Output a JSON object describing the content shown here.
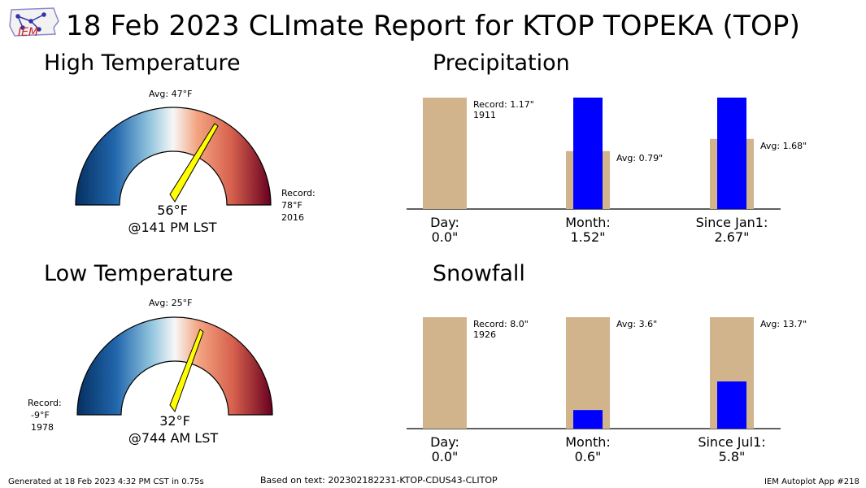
{
  "title": "18 Feb 2023 CLImate Report for KTOP TOPEKA (TOP)",
  "logo_text": "IEM",
  "colors": {
    "bar_record": "#d2b48c",
    "bar_obs": "#0000ff",
    "needle": "#ffff00"
  },
  "high_temp": {
    "heading": "High Temperature",
    "avg_label": "Avg: 47°F",
    "value_label": "56°F",
    "time_label": "@141 PM LST",
    "record_lines": [
      "Record:",
      "78°F",
      "2016"
    ],
    "value": 56,
    "avg": 47
  },
  "low_temp": {
    "heading": "Low Temperature",
    "avg_label": "Avg: 25°F",
    "value_label": "32°F",
    "time_label": "@744 AM LST",
    "record_lines": [
      "Record:",
      "-9°F",
      "1978"
    ],
    "value": 32,
    "avg": 25
  },
  "footer": {
    "generated": "Generated at 18 Feb 2023 4:32 PM CST in 0.75s",
    "based_on": "Based on text: 202302182231-KTOP-CDUS43-CLITOP",
    "app": "IEM Autoplot App #218"
  },
  "chart_data": [
    {
      "type": "bar",
      "title": "Precipitation",
      "categories": [
        "Day:",
        "Month:",
        "Since Jan1:"
      ],
      "observed_labels": [
        "0.0\"",
        "1.52\"",
        "2.67\""
      ],
      "series": [
        {
          "values": [
            1.17,
            0.79,
            1.68
          ]
        },
        {
          "values": [
            0.0,
            1.52,
            2.67
          ]
        }
      ],
      "annotations": [
        [
          "Record: 1.17\"",
          "1911"
        ],
        [
          "Avg: 0.79\""
        ],
        [
          "Avg: 1.68\""
        ]
      ]
    },
    {
      "type": "bar",
      "title": "Snowfall",
      "categories": [
        "Day:",
        "Month:",
        "Since Jul1:"
      ],
      "observed_labels": [
        "0.0\"",
        "0.6\"",
        "5.8\""
      ],
      "series": [
        {
          "values": [
            8.0,
            3.6,
            13.7
          ]
        },
        {
          "values": [
            0.0,
            0.6,
            5.8
          ]
        }
      ],
      "annotations": [
        [
          "Record: 8.0\"",
          "1926"
        ],
        [
          "Avg: 3.6\""
        ],
        [
          "Avg: 13.7\""
        ]
      ]
    }
  ]
}
